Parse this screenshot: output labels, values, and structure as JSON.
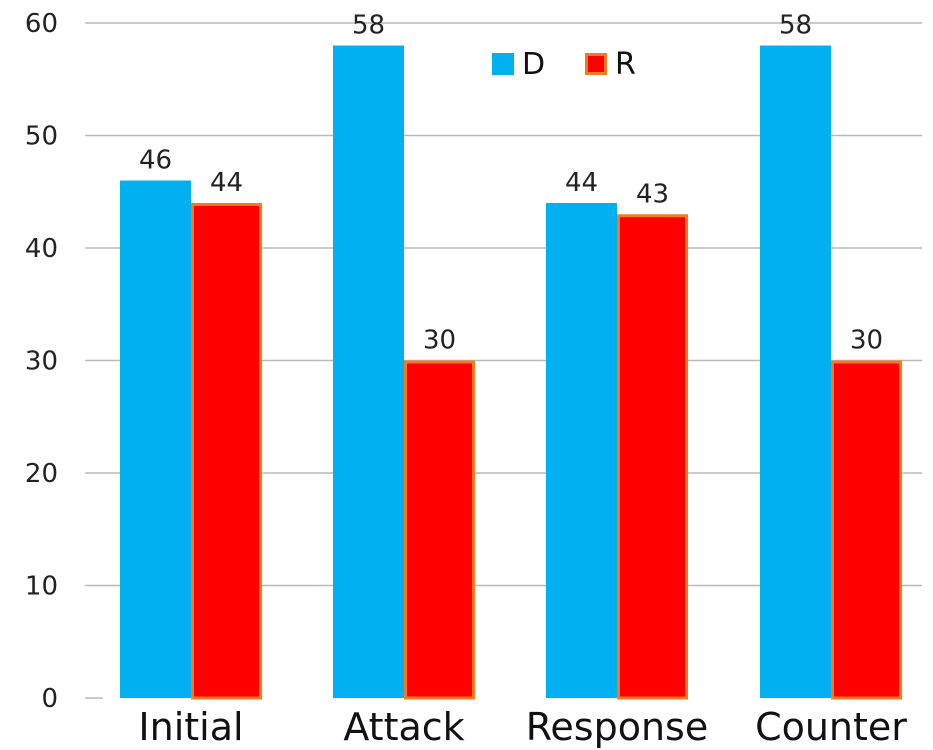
{
  "chart_data": {
    "type": "bar",
    "categories": [
      "Initial",
      "Attack",
      "Response",
      "Counter"
    ],
    "series": [
      {
        "name": "D",
        "values": [
          46,
          58,
          44,
          58
        ],
        "color": "#00B0F0"
      },
      {
        "name": "R",
        "values": [
          44,
          30,
          43,
          30
        ],
        "color": "#FF0000",
        "border_color": "#F47A20"
      }
    ],
    "yticks": [
      "0",
      "10",
      "20",
      "30",
      "40",
      "50",
      "60"
    ],
    "ylim": [
      0,
      60
    ],
    "grid": true,
    "legend_position": "top-center",
    "data_labels": true
  }
}
